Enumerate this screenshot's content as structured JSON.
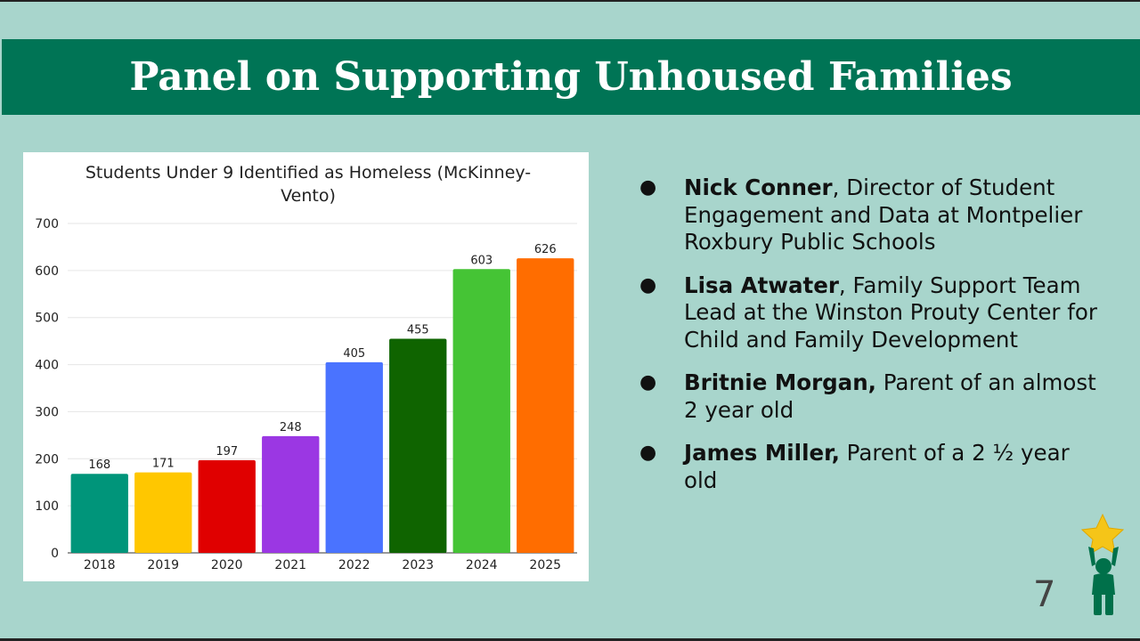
{
  "slide": {
    "title": "Panel on Supporting Unhoused Families",
    "page_number": "7"
  },
  "panelists": [
    {
      "name": "Nick Conner",
      "description": ", Director of Student Engagement and Data at Montpelier Roxbury Public Schools"
    },
    {
      "name": "Lisa Atwater",
      "description": ", Family Support Team Lead at the Winston Prouty Center for Child and Family Development"
    },
    {
      "name": "Britnie Morgan,",
      "description": " Parent of an almost 2 year old"
    },
    {
      "name": "James Miller,",
      "description": " Parent of a 2 ½ year old"
    }
  ],
  "bullet_char": "●",
  "colors": {
    "title_bar": "#007455",
    "background": "#a8d5cc",
    "star": "#f5c518",
    "child": "#00704a"
  },
  "chart_data": {
    "type": "bar",
    "title": "Students Under 9 Identified as Homeless (McKinney-Vento)",
    "categories": [
      "2018",
      "2019",
      "2020",
      "2021",
      "2022",
      "2023",
      "2024",
      "2025"
    ],
    "values": [
      168,
      171,
      197,
      248,
      405,
      455,
      603,
      626
    ],
    "bar_colors": [
      "#00957a",
      "#ffc700",
      "#e00000",
      "#9b37e3",
      "#4a73ff",
      "#0f6400",
      "#45c435",
      "#ff6d00"
    ],
    "ylim": [
      0,
      700
    ],
    "yticks": [
      0,
      100,
      200,
      300,
      400,
      500,
      600,
      700
    ],
    "xlabel": "",
    "ylabel": "",
    "grid": true,
    "data_labels": true
  }
}
